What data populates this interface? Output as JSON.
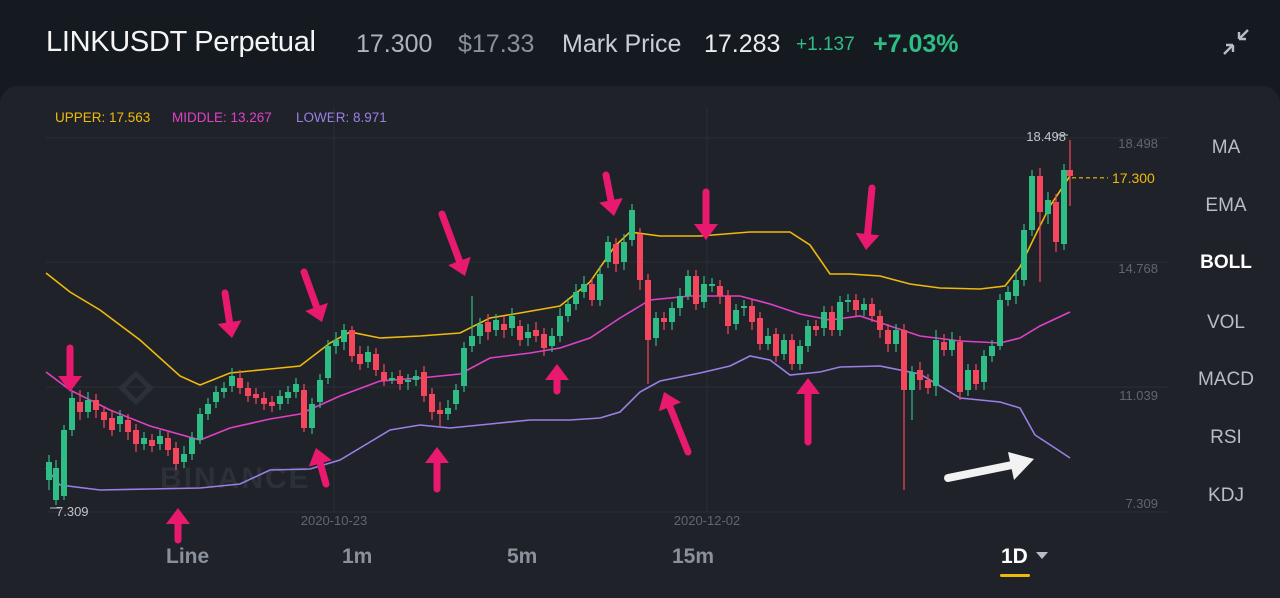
{
  "header": {
    "symbol": "LINKUSDT Perpetual",
    "last_price": "17.300",
    "usd_price": "$17.33",
    "mark_label": "Mark Price",
    "mark_price": "17.283",
    "change_abs": "+1.137",
    "change_pct": "+7.03%"
  },
  "boll_legend": {
    "upper": "UPPER: 17.563",
    "middle": "MIDDLE: 13.267",
    "lower": "LOWER: 8.971"
  },
  "colors": {
    "up": "#2ebd85",
    "down": "#f6465d",
    "upper_band": "#f0b90b",
    "middle_band": "#e040c8",
    "lower_band": "#9b7fe6",
    "annotation_arrow": "#e8196f",
    "trend_arrow": "#f2f2f2"
  },
  "indicators": [
    "MA",
    "EMA",
    "BOLL",
    "VOL",
    "MACD",
    "RSI",
    "KDJ"
  ],
  "active_indicator": "BOLL",
  "timeframes": [
    "Line",
    "1m",
    "5m",
    "15m",
    "1D"
  ],
  "active_timeframe": "1D",
  "watermark": "BINANCE",
  "chart_data": {
    "type": "candlestick",
    "interval": "1 day",
    "y_axis_labels": [
      "18.498",
      "14.768",
      "11.039",
      "7.309"
    ],
    "x_axis_labels": [
      "2020-10-23",
      "2020-12-02"
    ],
    "ylim": [
      7.309,
      18.498
    ],
    "max_label": "18.498",
    "min_label": "7.309",
    "current_price_label": "17.300",
    "current_price": 17.3,
    "overlays": [
      "UPPER",
      "MIDDLE",
      "LOWER"
    ],
    "annotations": {
      "pink_arrows": [
        "down",
        "up",
        "down",
        "up",
        "down",
        "up",
        "down",
        "up",
        "down",
        "up",
        "down",
        "up",
        "down",
        "up"
      ],
      "white_arrow": "right"
    }
  }
}
